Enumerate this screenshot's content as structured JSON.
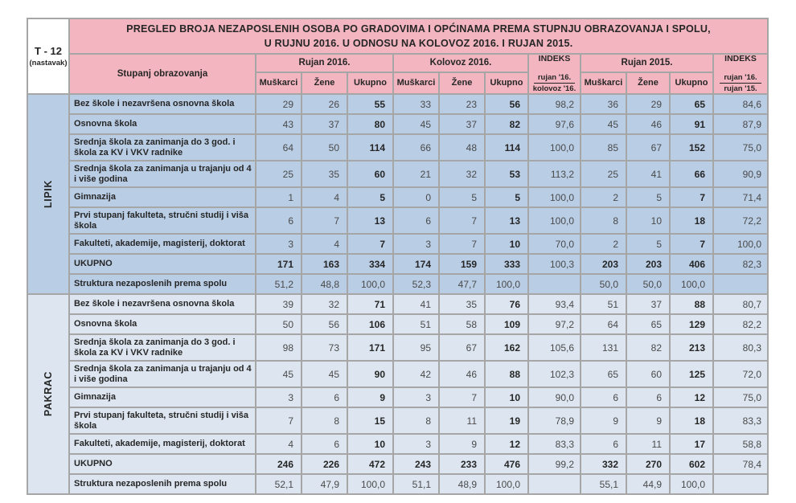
{
  "page": {
    "tag": "T - 12",
    "tag_note": "(nastavak)",
    "title_line1": "PREGLED BROJA NEZAPOSLENIH OSOBA PO GRADOVIMA I OPĆINAMA PREMA STUPNJU OBRAZOVANJA I SPOLU,",
    "title_line2": "U RUJNU 2016. U ODNOSU NA KOLOVOZ 2016.  I RUJAN 2015."
  },
  "header": {
    "stub": "Stupanj obrazovanja",
    "groups": [
      {
        "label": "Rujan 2016.",
        "cols": [
          "Muškarci",
          "Žene",
          "Ukupno"
        ]
      },
      {
        "label": "Kolovoz 2016.",
        "cols": [
          "Muškarci",
          "Žene",
          "Ukupno"
        ]
      },
      {
        "label": "Rujan 2015.",
        "cols": [
          "Muškarci",
          "Žene",
          "Ukupno"
        ]
      }
    ],
    "indeks1": {
      "line1": "INDEKS",
      "line2": "rujan '16.",
      "line3": "kolovoz '16."
    },
    "indeks2": {
      "line1": "INDEKS",
      "line2": "rujan '16.",
      "line3": "rujan '15."
    }
  },
  "sections": [
    {
      "name": "LIPIK",
      "rows": [
        {
          "type": "normal",
          "label": "Bez škole i nezavršena osnovna škola",
          "cells": [
            "29",
            "26",
            "55",
            "33",
            "23",
            "56",
            "98,2",
            "36",
            "29",
            "65",
            "84,6"
          ]
        },
        {
          "type": "normal",
          "label": "Osnovna škola",
          "cells": [
            "43",
            "37",
            "80",
            "45",
            "37",
            "82",
            "97,6",
            "45",
            "46",
            "91",
            "87,9"
          ]
        },
        {
          "type": "normal",
          "label": "Srednja škola za zanimanja do 3 god. i škola za KV i VKV radnike",
          "cells": [
            "64",
            "50",
            "114",
            "66",
            "48",
            "114",
            "100,0",
            "85",
            "67",
            "152",
            "75,0"
          ]
        },
        {
          "type": "normal",
          "label": "Srednja škola za zanimanja u trajanju od 4 i više godina",
          "cells": [
            "25",
            "35",
            "60",
            "21",
            "32",
            "53",
            "113,2",
            "25",
            "41",
            "66",
            "90,9"
          ]
        },
        {
          "type": "normal",
          "label": "Gimnazija",
          "cells": [
            "1",
            "4",
            "5",
            "0",
            "5",
            "5",
            "100,0",
            "2",
            "5",
            "7",
            "71,4"
          ]
        },
        {
          "type": "normal",
          "label": "Prvi stupanj fakulteta, stručni studij i viša škola",
          "cells": [
            "6",
            "7",
            "13",
            "6",
            "7",
            "13",
            "100,0",
            "8",
            "10",
            "18",
            "72,2"
          ]
        },
        {
          "type": "normal",
          "label": "Fakulteti, akademije, magisterij, doktorat",
          "cells": [
            "3",
            "4",
            "7",
            "3",
            "7",
            "10",
            "70,0",
            "2",
            "5",
            "7",
            "100,0"
          ]
        },
        {
          "type": "total",
          "label": "UKUPNO",
          "cells": [
            "171",
            "163",
            "334",
            "174",
            "159",
            "333",
            "100,3",
            "203",
            "203",
            "406",
            "82,3"
          ]
        },
        {
          "type": "structure",
          "label": "Struktura nezaposlenih prema spolu",
          "cells": [
            "51,2",
            "48,8",
            "100,0",
            "52,3",
            "47,7",
            "100,0",
            "",
            "50,0",
            "50,0",
            "100,0",
            ""
          ]
        }
      ]
    },
    {
      "name": "PAKRAC",
      "rows": [
        {
          "type": "normal",
          "label": "Bez škole i nezavršena osnovna škola",
          "cells": [
            "39",
            "32",
            "71",
            "41",
            "35",
            "76",
            "93,4",
            "51",
            "37",
            "88",
            "80,7"
          ]
        },
        {
          "type": "normal",
          "label": "Osnovna škola",
          "cells": [
            "50",
            "56",
            "106",
            "51",
            "58",
            "109",
            "97,2",
            "64",
            "65",
            "129",
            "82,2"
          ]
        },
        {
          "type": "normal",
          "label": "Srednja škola za zanimanja do 3 god. i škola za KV i VKV radnike",
          "cells": [
            "98",
            "73",
            "171",
            "95",
            "67",
            "162",
            "105,6",
            "131",
            "82",
            "213",
            "80,3"
          ]
        },
        {
          "type": "normal",
          "label": "Srednja škola za zanimanja u trajanju od 4 i više godina",
          "cells": [
            "45",
            "45",
            "90",
            "42",
            "46",
            "88",
            "102,3",
            "65",
            "60",
            "125",
            "72,0"
          ]
        },
        {
          "type": "normal",
          "label": "Gimnazija",
          "cells": [
            "3",
            "6",
            "9",
            "3",
            "7",
            "10",
            "90,0",
            "6",
            "6",
            "12",
            "75,0"
          ]
        },
        {
          "type": "normal",
          "label": "Prvi stupanj fakulteta, stručni studij i viša škola",
          "cells": [
            "7",
            "8",
            "15",
            "8",
            "11",
            "19",
            "78,9",
            "9",
            "9",
            "18",
            "83,3"
          ]
        },
        {
          "type": "normal",
          "label": "Fakulteti, akademije, magisterij, doktorat",
          "cells": [
            "4",
            "6",
            "10",
            "3",
            "9",
            "12",
            "83,3",
            "6",
            "11",
            "17",
            "58,8"
          ]
        },
        {
          "type": "total",
          "label": "UKUPNO",
          "cells": [
            "246",
            "226",
            "472",
            "243",
            "233",
            "476",
            "99,2",
            "332",
            "270",
            "602",
            "78,4"
          ]
        },
        {
          "type": "structure",
          "label": "Struktura nezaposlenih prema spolu",
          "cells": [
            "52,1",
            "47,9",
            "100,0",
            "51,1",
            "48,9",
            "100,0",
            "",
            "55,1",
            "44,9",
            "100,0",
            ""
          ]
        }
      ]
    }
  ],
  "colors": {
    "header_pink": "#f3b6c0",
    "section_lipik_blue": "#b9cde5",
    "section_pakrac_blue": "#dde6f0",
    "grid_gray": "#a6a6a6",
    "text_dark": "#262626"
  }
}
